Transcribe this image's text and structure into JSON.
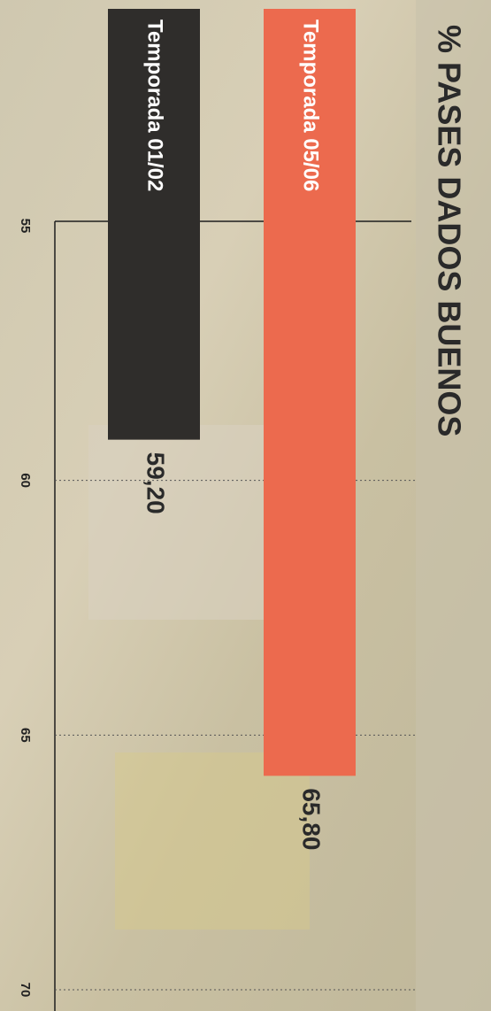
{
  "chart_data": {
    "type": "bar",
    "title": "% PASES DADOS BUENOS",
    "categories": [
      "Temporada 01/02",
      "Temporada 05/06"
    ],
    "values": [
      59.2,
      65.8
    ],
    "value_labels": [
      "59,20",
      "65,80"
    ],
    "colors": [
      "#2f2d2b",
      "#ec6a4e"
    ],
    "ylim": [
      55,
      70
    ],
    "yticks": [
      55,
      60,
      65,
      70
    ],
    "grid": true
  }
}
